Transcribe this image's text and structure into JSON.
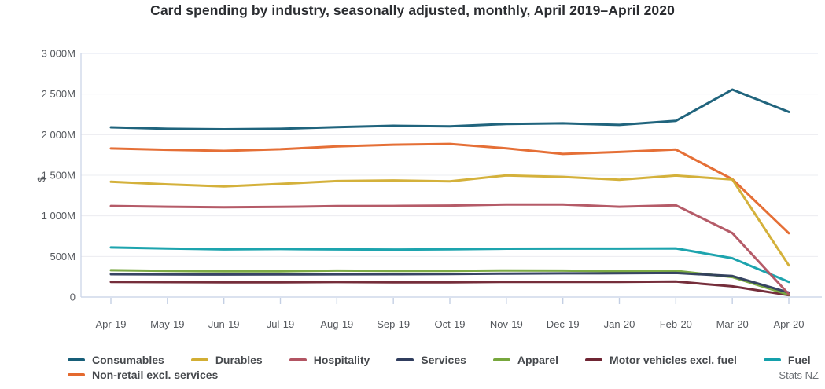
{
  "title": "Card spending by industry, seasonally adjusted, monthly, April 2019–April 2020",
  "source": "Stats NZ",
  "chart_data": {
    "type": "line",
    "title": "Card spending by industry, seasonally adjusted, monthly, April 2019–April 2020",
    "xlabel": "",
    "ylabel": "$",
    "ylim": [
      0,
      3000
    ],
    "ytick_step": 500,
    "ytick_labels": [
      "0",
      "500M",
      "1 000M",
      "1 500M",
      "2 000M",
      "2 500M",
      "3 000M"
    ],
    "grid": true,
    "legend_position": "bottom",
    "categories": [
      "Apr-19",
      "May-19",
      "Jun-19",
      "Jul-19",
      "Aug-19",
      "Sep-19",
      "Oct-19",
      "Nov-19",
      "Dec-19",
      "Jan-20",
      "Feb-20",
      "Mar-20",
      "Apr-20"
    ],
    "series": [
      {
        "name": "Consumables",
        "color": "#175e78",
        "values": [
          2090,
          2072,
          2066,
          2072,
          2092,
          2110,
          2102,
          2132,
          2140,
          2120,
          2170,
          2555,
          2280
        ]
      },
      {
        "name": "Durables",
        "color": "#d2ae33",
        "values": [
          1420,
          1388,
          1362,
          1394,
          1428,
          1436,
          1425,
          1498,
          1480,
          1445,
          1496,
          1448,
          390
        ]
      },
      {
        "name": "Hospitality",
        "color": "#b25462",
        "values": [
          1122,
          1112,
          1106,
          1110,
          1120,
          1122,
          1126,
          1140,
          1140,
          1112,
          1130,
          788,
          35
        ]
      },
      {
        "name": "Services",
        "color": "#303d5e",
        "values": [
          281,
          279,
          277,
          278,
          280,
          281,
          283,
          288,
          291,
          292,
          296,
          258,
          55
        ]
      },
      {
        "name": "Apparel",
        "color": "#77a73d",
        "values": [
          330,
          321,
          316,
          317,
          325,
          321,
          321,
          327,
          325,
          317,
          321,
          246,
          28
        ]
      },
      {
        "name": "Motor vehicles excl. fuel",
        "color": "#6f2533",
        "values": [
          187,
          184,
          181,
          181,
          185,
          182,
          182,
          187,
          187,
          187,
          191,
          132,
          22
        ]
      },
      {
        "name": "Fuel",
        "color": "#14a0ab",
        "values": [
          611,
          598,
          586,
          591,
          586,
          585,
          587,
          595,
          596,
          596,
          599,
          478,
          186
        ]
      },
      {
        "name": "Non-retail excl. services",
        "color": "#e4692e",
        "values": [
          1830,
          1814,
          1800,
          1820,
          1856,
          1876,
          1886,
          1832,
          1762,
          1786,
          1816,
          1452,
          786
        ]
      }
    ],
    "legend_rows": [
      [
        "Consumables",
        "Durables",
        "Hospitality",
        "Services",
        "Apparel",
        "Motor vehicles excl. fuel",
        "Fuel"
      ],
      [
        "Non-retail excl. services"
      ]
    ]
  }
}
